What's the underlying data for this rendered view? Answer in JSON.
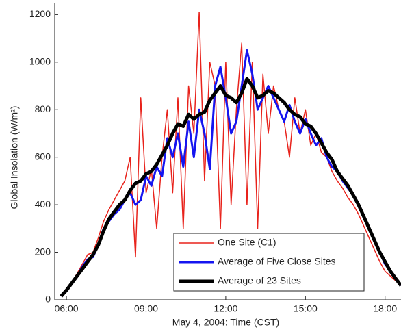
{
  "chart_data": {
    "type": "line",
    "x_label": "May 4, 2004: Time (CST)",
    "y_label": "Global Insolation (W/m²)",
    "x": [
      5.8,
      6.0,
      6.2,
      6.4,
      6.6,
      6.8,
      7.0,
      7.2,
      7.4,
      7.6,
      7.8,
      8.0,
      8.2,
      8.4,
      8.6,
      8.8,
      9.0,
      9.2,
      9.4,
      9.6,
      9.8,
      10.0,
      10.2,
      10.4,
      10.6,
      10.8,
      11.0,
      11.2,
      11.4,
      11.6,
      11.8,
      12.0,
      12.2,
      12.4,
      12.6,
      12.8,
      13.0,
      13.2,
      13.4,
      13.6,
      13.8,
      14.0,
      14.2,
      14.4,
      14.6,
      14.8,
      15.0,
      15.2,
      15.4,
      15.6,
      15.8,
      16.0,
      16.2,
      16.4,
      16.6,
      16.8,
      17.0,
      17.2,
      17.4,
      17.6,
      17.8,
      18.0,
      18.2,
      18.4,
      18.6
    ],
    "series": [
      {
        "name": "One Site (C1)",
        "color": "#e8221b",
        "width": 1.5,
        "values": [
          15,
          40,
          75,
          110,
          150,
          190,
          200,
          260,
          330,
          380,
          420,
          460,
          500,
          600,
          180,
          850,
          450,
          550,
          300,
          600,
          800,
          450,
          850,
          300,
          900,
          700,
          1210,
          500,
          1000,
          900,
          300,
          1000,
          400,
          800,
          1080,
          400,
          1000,
          300,
          950,
          700,
          900,
          800,
          750,
          600,
          850,
          700,
          800,
          650,
          700,
          620,
          600,
          540,
          500,
          470,
          430,
          400,
          360,
          310,
          260,
          210,
          160,
          120,
          100,
          80,
          60
        ]
      },
      {
        "name": "Average of Five Close Sites",
        "color": "#1515f0",
        "width": 3,
        "values": [
          15,
          40,
          70,
          100,
          140,
          170,
          180,
          230,
          300,
          330,
          360,
          380,
          420,
          450,
          400,
          420,
          520,
          480,
          560,
          520,
          680,
          600,
          700,
          560,
          750,
          600,
          800,
          700,
          550,
          900,
          980,
          850,
          700,
          750,
          900,
          1050,
          950,
          800,
          850,
          900,
          850,
          800,
          750,
          820,
          750,
          700,
          760,
          700,
          650,
          680,
          600,
          560,
          540,
          500,
          470,
          440,
          400,
          350,
          300,
          250,
          200,
          150,
          120,
          90,
          60
        ]
      },
      {
        "name": "Average of 23 Sites",
        "color": "#000000",
        "width": 5,
        "values": [
          15,
          40,
          70,
          100,
          130,
          160,
          190,
          230,
          290,
          340,
          370,
          400,
          420,
          460,
          490,
          500,
          530,
          540,
          570,
          610,
          650,
          700,
          740,
          730,
          780,
          760,
          780,
          790,
          840,
          870,
          900,
          860,
          850,
          830,
          870,
          930,
          900,
          850,
          860,
          880,
          870,
          850,
          830,
          800,
          780,
          770,
          740,
          730,
          700,
          660,
          620,
          590,
          540,
          510,
          480,
          440,
          400,
          350,
          300,
          250,
          200,
          160,
          120,
          90,
          60
        ]
      }
    ],
    "xlim": [
      5.56,
      18.6
    ],
    "ylim": [
      0,
      1250
    ],
    "xticks": [
      {
        "value": 6,
        "label": "06:00"
      },
      {
        "value": 9,
        "label": "09:00"
      },
      {
        "value": 12,
        "label": "12:00"
      },
      {
        "value": 15,
        "label": "15:00"
      },
      {
        "value": 18,
        "label": "18:00"
      }
    ],
    "yticks": [
      0,
      200,
      400,
      600,
      800,
      1000,
      1200
    ],
    "legend": "lower right"
  }
}
